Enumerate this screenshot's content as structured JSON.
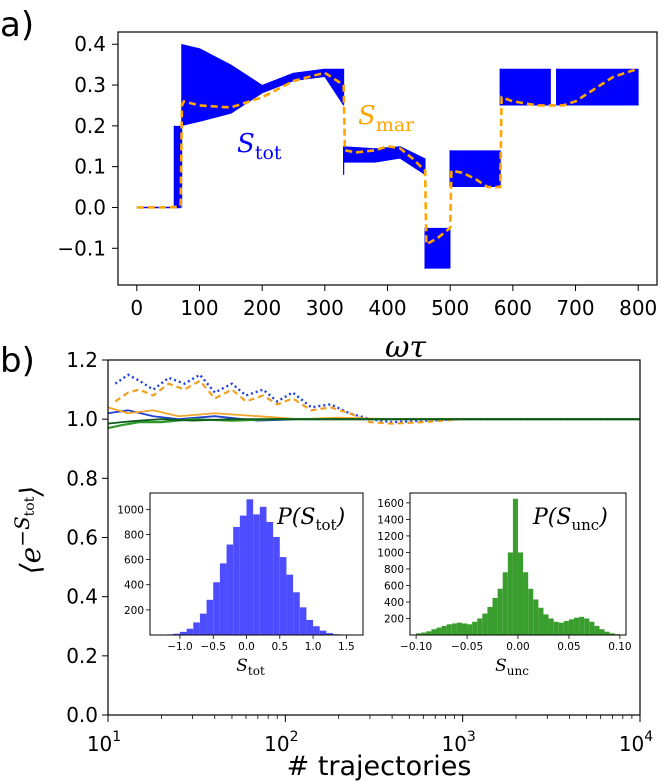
{
  "panel_labels": {
    "a": "a)",
    "b": "b)"
  },
  "chart_data": [
    {
      "type": "line",
      "panel": "a",
      "xlabel": "ωτ",
      "ylabel": "",
      "xlim": [
        -30,
        830
      ],
      "ylim": [
        -0.19,
        0.43
      ],
      "xticks": [
        0,
        100,
        200,
        300,
        400,
        500,
        600,
        700,
        800
      ],
      "yticks": [
        -0.1,
        0.0,
        0.1,
        0.2,
        0.3,
        0.4
      ],
      "ytick_labels": [
        "−0.1",
        "0.0",
        "0.1",
        "0.2",
        "0.3",
        "0.4"
      ],
      "annotations": {
        "stot_label": "S",
        "stot_sub": "tot",
        "smar_label": "S",
        "smar_sub": "mar"
      },
      "colors": {
        "stot": "#0000ff",
        "smar": "#ffa500"
      },
      "series": [
        {
          "name": "S_mar",
          "style": "dashed",
          "x": [
            0,
            30,
            60,
            70,
            72,
            75,
            100,
            150,
            200,
            250,
            300,
            330,
            332,
            350,
            380,
            400,
            420,
            440,
            460,
            462,
            480,
            500,
            502,
            520,
            540,
            560,
            580,
            582,
            600,
            640,
            680,
            700,
            720,
            760,
            800
          ],
          "y": [
            0,
            0,
            0.001,
            0.005,
            0.25,
            0.26,
            0.25,
            0.245,
            0.27,
            0.31,
            0.33,
            0.3,
            0.14,
            0.135,
            0.14,
            0.15,
            0.145,
            0.12,
            0.09,
            -0.09,
            -0.075,
            -0.05,
            0.09,
            0.085,
            0.07,
            0.05,
            0.05,
            0.27,
            0.26,
            0.25,
            0.25,
            0.26,
            0.28,
            0.32,
            0.34
          ]
        },
        {
          "name": "S_tot",
          "style": "band",
          "segments": [
            {
              "x": [
                60,
                72
              ],
              "lower": [
                0.0,
                0.0
              ],
              "upper": [
                0.2,
                0.2
              ]
            },
            {
              "x": [
                72,
                100,
                150,
                200,
                250,
                300,
                330
              ],
              "lower": [
                0.2,
                0.21,
                0.23,
                0.28,
                0.31,
                0.32,
                0.25
              ],
              "upper": [
                0.4,
                0.39,
                0.35,
                0.3,
                0.33,
                0.34,
                0.34
              ]
            },
            {
              "x": [
                330,
                380,
                420,
                460
              ],
              "lower": [
                0.11,
                0.11,
                0.12,
                0.08
              ],
              "upper": [
                0.15,
                0.145,
                0.15,
                0.12
              ]
            },
            {
              "x": [
                460,
                500
              ],
              "lower": [
                -0.15,
                -0.15
              ],
              "upper": [
                -0.05,
                -0.05
              ]
            },
            {
              "x": [
                500,
                540,
                580
              ],
              "lower": [
                0.05,
                0.05,
                0.05
              ],
              "upper": [
                0.14,
                0.14,
                0.14
              ]
            },
            {
              "x": [
                580,
                620,
                660
              ],
              "lower": [
                0.25,
                0.25,
                0.25
              ],
              "upper": [
                0.34,
                0.34,
                0.34
              ]
            },
            {
              "x": [
                670,
                730,
                800
              ],
              "lower": [
                0.25,
                0.25,
                0.25
              ],
              "upper": [
                0.34,
                0.34,
                0.34
              ]
            }
          ]
        }
      ]
    },
    {
      "type": "line",
      "panel": "b",
      "xscale": "log",
      "xlabel": "# trajectories",
      "ylabel": "⟨e^{−S_tot}⟩",
      "xlim": [
        10,
        10000
      ],
      "ylim": [
        0.0,
        1.2
      ],
      "xticks": [
        10,
        100,
        1000,
        10000
      ],
      "xtick_bases": [
        "10",
        "10",
        "10",
        "10"
      ],
      "xtick_exps": [
        "1",
        "2",
        "3",
        "4"
      ],
      "yticks": [
        0.0,
        0.2,
        0.4,
        0.6,
        0.8,
        1.0,
        1.2
      ],
      "ytick_labels": [
        "0.0",
        "0.2",
        "0.4",
        "0.6",
        "0.8",
        "1.0",
        "1.2"
      ],
      "ylabel_parts": {
        "bracket_l": "⟨",
        "e": "e",
        "exp_sign": "−S",
        "exp_sub": "tot",
        "bracket_r": "⟩"
      },
      "series": [
        {
          "style": "dotted-blue",
          "x": [
            11,
            13,
            15,
            18,
            22,
            27,
            33,
            40,
            50,
            60,
            75,
            90,
            110,
            140,
            180,
            230,
            300,
            400,
            600,
            1000,
            3000,
            10000
          ],
          "y": [
            1.12,
            1.15,
            1.13,
            1.1,
            1.14,
            1.12,
            1.15,
            1.09,
            1.12,
            1.08,
            1.1,
            1.06,
            1.09,
            1.04,
            1.05,
            1.02,
            1.0,
            0.99,
            0.995,
            1.0,
            1.0,
            1.0
          ]
        },
        {
          "style": "dashed-orange",
          "x": [
            11,
            13,
            15,
            18,
            22,
            27,
            33,
            40,
            50,
            60,
            75,
            90,
            110,
            140,
            180,
            230,
            300,
            400,
            600,
            1000,
            3000,
            10000
          ],
          "y": [
            1.06,
            1.09,
            1.1,
            1.08,
            1.12,
            1.1,
            1.13,
            1.07,
            1.1,
            1.06,
            1.08,
            1.05,
            1.07,
            1.03,
            1.04,
            1.02,
            0.99,
            0.985,
            0.99,
            1.0,
            1.0,
            1.0
          ]
        },
        {
          "style": "solid-blue",
          "x": [
            10,
            13,
            18,
            25,
            40,
            70,
            120,
            200,
            400,
            1000,
            10000
          ],
          "y": [
            1.02,
            1.03,
            1.01,
            1.0,
            1.01,
            0.995,
            1.0,
            1.0,
            1.0,
            1.0,
            1.0
          ]
        },
        {
          "style": "solid-orange",
          "x": [
            10,
            13,
            18,
            25,
            40,
            70,
            120,
            200,
            400,
            1000,
            10000
          ],
          "y": [
            1.04,
            1.02,
            1.03,
            1.01,
            1.02,
            1.01,
            1.0,
            1.005,
            1.0,
            1.0,
            1.0
          ]
        },
        {
          "style": "solid-green",
          "x": [
            10,
            12,
            15,
            20,
            30,
            50,
            90,
            150,
            300,
            1000,
            10000
          ],
          "y": [
            0.97,
            0.98,
            0.99,
            0.99,
            1.0,
            0.995,
            1.0,
            1.0,
            1.0,
            1.0,
            1.0
          ]
        },
        {
          "style": "solid-darkgreen",
          "x": [
            10,
            12,
            15,
            20,
            30,
            50,
            90,
            150,
            300,
            1000,
            10000
          ],
          "y": [
            0.985,
            0.99,
            0.995,
            1.0,
            0.995,
            1.0,
            1.0,
            1.0,
            1.0,
            1.0,
            1.0
          ]
        }
      ]
    },
    {
      "type": "bar",
      "panel": "inset-left",
      "title": "P(S_tot)",
      "title_parts": {
        "p": "P(",
        "s": "S",
        "sub": "tot",
        "close": ")"
      },
      "xlabel_parts": {
        "s": "S",
        "sub": "tot"
      },
      "color": "#4d4dff",
      "xlim": [
        -1.45,
        1.75
      ],
      "ylim": [
        0,
        1130
      ],
      "xticks": [
        -1.0,
        -0.5,
        0.0,
        0.5,
        1.0,
        1.5
      ],
      "xtick_labels": [
        "−1.0",
        "−0.5",
        "0.0",
        "0.5",
        "1.0",
        "1.5"
      ],
      "yticks": [
        200,
        400,
        600,
        800,
        1000
      ],
      "ytick_labels": [
        "200",
        "400",
        "600",
        "800",
        "1000"
      ],
      "bin_edges": [
        -1.3,
        -1.2,
        -1.1,
        -1.0,
        -0.9,
        -0.8,
        -0.7,
        -0.6,
        -0.5,
        -0.4,
        -0.3,
        -0.2,
        -0.1,
        0.0,
        0.1,
        0.2,
        0.3,
        0.4,
        0.5,
        0.6,
        0.7,
        0.8,
        0.9,
        1.0,
        1.1,
        1.2,
        1.3,
        1.4,
        1.5,
        1.6
      ],
      "counts": [
        3,
        5,
        10,
        25,
        50,
        100,
        170,
        280,
        420,
        570,
        720,
        860,
        950,
        1080,
        960,
        1020,
        900,
        780,
        620,
        480,
        340,
        220,
        120,
        70,
        35,
        15,
        6,
        3,
        2
      ]
    },
    {
      "type": "bar",
      "panel": "inset-right",
      "title": "P(S_unc)",
      "title_parts": {
        "p": "P(",
        "s": "S",
        "sub": "unc",
        "close": ")"
      },
      "xlabel_parts": {
        "s": "S",
        "sub": "unc"
      },
      "color": "#3a9e2e",
      "xlim": [
        -0.106,
        0.106
      ],
      "ylim": [
        0,
        1720
      ],
      "xticks": [
        -0.1,
        -0.05,
        0.0,
        0.05,
        0.1
      ],
      "xtick_labels": [
        "−0.10",
        "−0.05",
        "0.00",
        "0.05",
        "0.10"
      ],
      "yticks": [
        200,
        400,
        600,
        800,
        1000,
        1200,
        1400,
        1600
      ],
      "ytick_labels": [
        "200",
        "400",
        "600",
        "800",
        "1000",
        "1200",
        "1400",
        "1600"
      ],
      "bin_edges": [
        -0.1,
        -0.095,
        -0.09,
        -0.085,
        -0.08,
        -0.075,
        -0.07,
        -0.065,
        -0.06,
        -0.055,
        -0.05,
        -0.045,
        -0.04,
        -0.035,
        -0.03,
        -0.025,
        -0.02,
        -0.015,
        -0.01,
        -0.005,
        0.0,
        0.005,
        0.01,
        0.015,
        0.02,
        0.025,
        0.03,
        0.035,
        0.04,
        0.045,
        0.05,
        0.055,
        0.06,
        0.065,
        0.07,
        0.075,
        0.08,
        0.085,
        0.09,
        0.095,
        0.1
      ],
      "counts": [
        20,
        30,
        45,
        70,
        90,
        110,
        130,
        140,
        150,
        140,
        130,
        160,
        200,
        260,
        340,
        450,
        560,
        760,
        1000,
        1650,
        1000,
        760,
        560,
        430,
        330,
        250,
        200,
        160,
        150,
        170,
        190,
        210,
        220,
        200,
        160,
        110,
        70,
        40,
        20,
        10
      ]
    }
  ]
}
